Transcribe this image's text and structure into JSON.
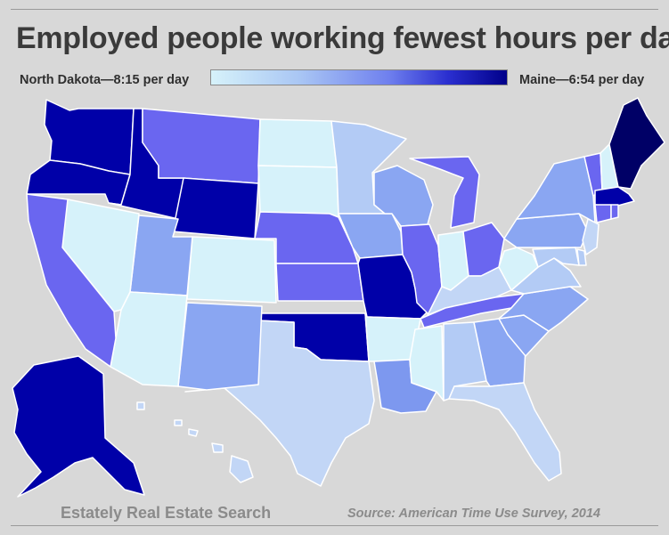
{
  "title": "Employed people working fewest hours per day",
  "legend": {
    "low_label": "North Dakota—8:15 per day",
    "high_label": "Maine—6:54 per day",
    "colors": [
      "#d6f2fa",
      "#a9c6f4",
      "#7f9cf0",
      "#5a5ff0",
      "#0000a8",
      "#000066"
    ]
  },
  "footer": {
    "brand": "Estately Real Estate Search",
    "source": "Source: American Time Use Survey, 2014"
  }
}
